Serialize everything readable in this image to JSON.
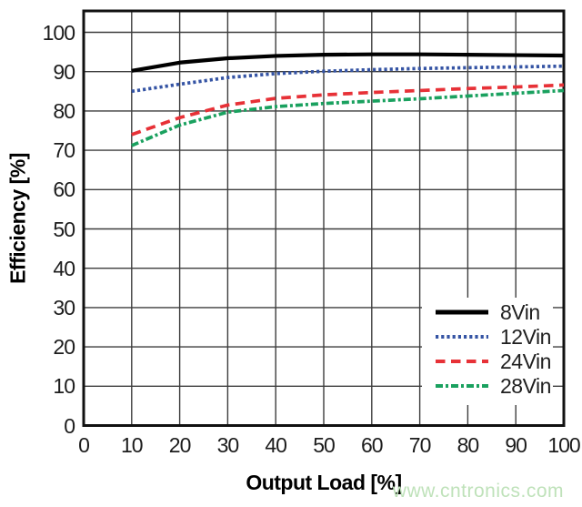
{
  "figure": {
    "watermark": "www.cntronics.com",
    "watermark_color": "#bfe2ba"
  },
  "chart_data": {
    "type": "line",
    "title": "",
    "xlabel": "Output Load [%]",
    "ylabel": "Efficiency [%]",
    "xlim": [
      0,
      100
    ],
    "ylim": [
      0,
      100
    ],
    "xticks": [
      0,
      10,
      20,
      30,
      40,
      50,
      60,
      70,
      80,
      90,
      100
    ],
    "yticks": [
      0,
      10,
      20,
      30,
      40,
      50,
      60,
      70,
      80,
      90,
      100
    ],
    "grid": true,
    "grid_color": "#3d3d3d",
    "frame_color": "#111111",
    "legend_position": "lower-right",
    "x": [
      10,
      20,
      30,
      40,
      50,
      60,
      70,
      80,
      90,
      100
    ],
    "series": [
      {
        "name": "8Vin",
        "color": "#000000",
        "style": "solid",
        "values": [
          90.2,
          92.3,
          93.4,
          94.0,
          94.3,
          94.4,
          94.4,
          94.3,
          94.2,
          94.1
        ]
      },
      {
        "name": "12Vin",
        "color": "#3554a4",
        "style": "dotted",
        "values": [
          85.0,
          86.8,
          88.5,
          89.5,
          90.1,
          90.5,
          90.8,
          91.0,
          91.2,
          91.4
        ]
      },
      {
        "name": "24Vin",
        "color": "#e73137",
        "style": "dashed",
        "values": [
          74.0,
          78.3,
          81.5,
          83.2,
          84.1,
          84.7,
          85.2,
          85.7,
          86.1,
          86.6
        ]
      },
      {
        "name": "28Vin",
        "color": "#1aa15f",
        "style": "dash-dot",
        "values": [
          71.2,
          76.4,
          79.7,
          81.1,
          81.9,
          82.5,
          83.1,
          83.8,
          84.5,
          85.2
        ]
      }
    ]
  }
}
